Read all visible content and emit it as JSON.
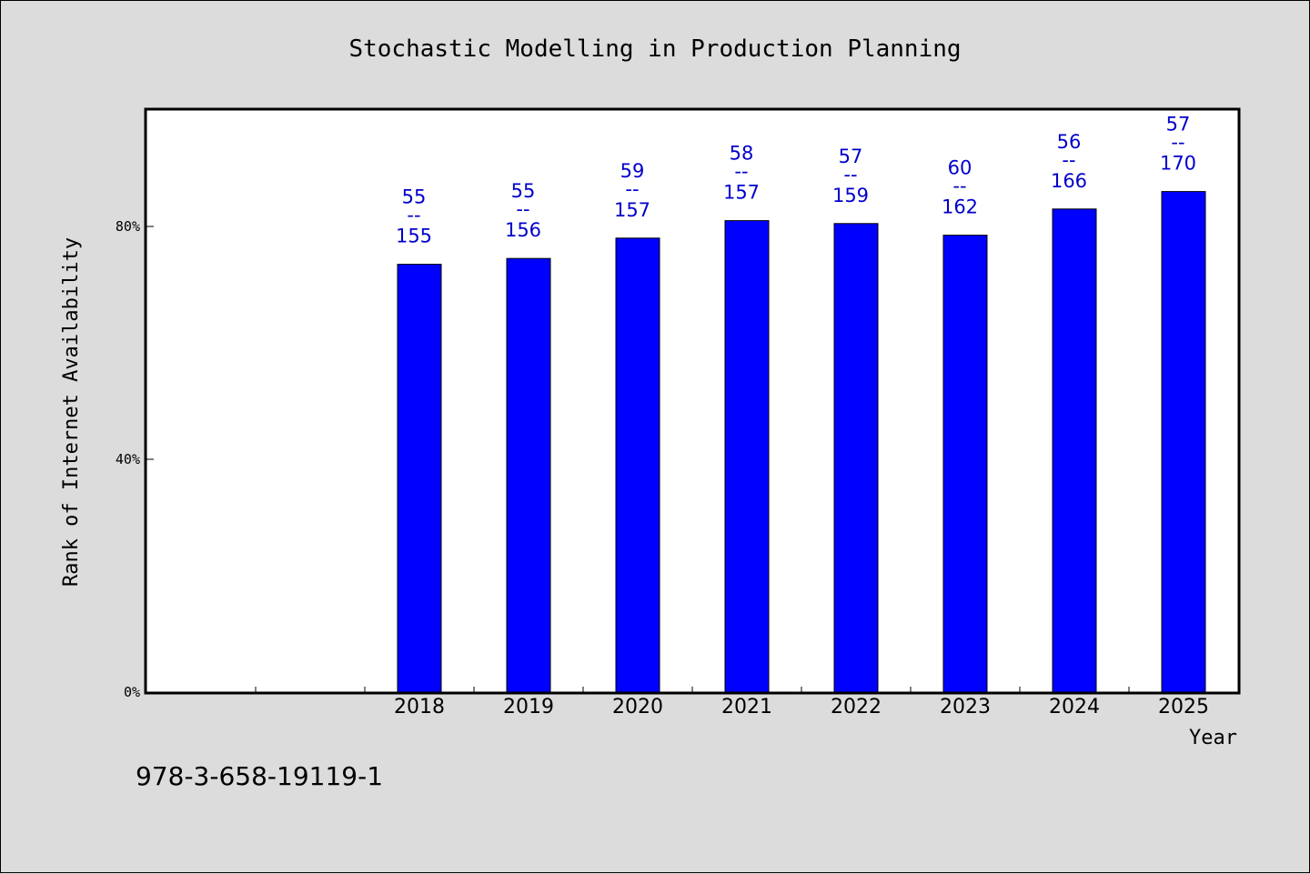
{
  "chart_data": {
    "type": "bar",
    "title": "Stochastic Modelling in Production Planning",
    "xlabel": "Year",
    "ylabel": "Rank of Internet Availability",
    "categories": [
      "",
      "",
      "2018",
      "2019",
      "2020",
      "2021",
      "2022",
      "2023",
      "2024",
      "2025"
    ],
    "series": [
      {
        "values": [
          null,
          null,
          73.5,
          74.5,
          78,
          81,
          80.5,
          78.5,
          83,
          86
        ],
        "labels_top": [
          "",
          "",
          "55",
          "55",
          "59",
          "58",
          "57",
          "60",
          "56",
          "57"
        ],
        "labels_bottom": [
          "",
          "",
          "155",
          "156",
          "157",
          "157",
          "159",
          "162",
          "166",
          "170"
        ],
        "separator": "--"
      }
    ],
    "yticks": [
      "0%",
      "40%",
      "80%"
    ],
    "ytick_values": [
      0,
      40,
      80
    ],
    "ylim": [
      0,
      100
    ],
    "grid": false,
    "legend": "none",
    "bar_color": "#0000ff",
    "label_color": "#0000cc"
  },
  "footer": {
    "isbn": "978-3-658-19119-1"
  },
  "colors": {
    "background": "#dcdcdc",
    "plot_background": "#ffffff"
  }
}
